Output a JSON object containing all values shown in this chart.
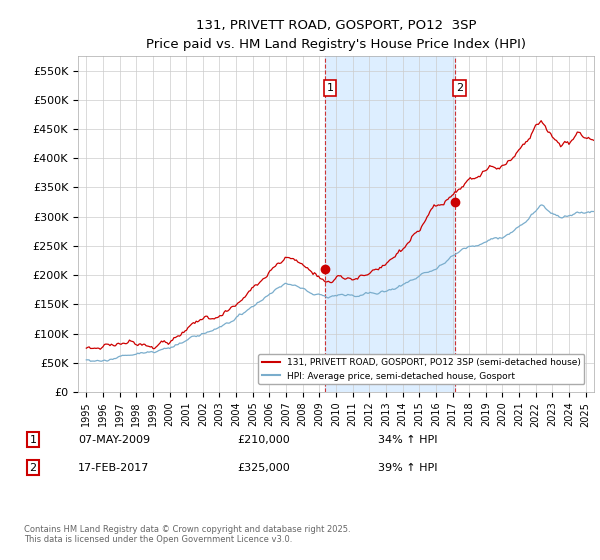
{
  "title": "131, PRIVETT ROAD, GOSPORT, PO12  3SP",
  "subtitle": "Price paid vs. HM Land Registry's House Price Index (HPI)",
  "legend_line1": "131, PRIVETT ROAD, GOSPORT, PO12 3SP (semi-detached house)",
  "legend_line2": "HPI: Average price, semi-detached house, Gosport",
  "footnote": "Contains HM Land Registry data © Crown copyright and database right 2025.\nThis data is licensed under the Open Government Licence v3.0.",
  "sale1_date": "07-MAY-2009",
  "sale1_price": "£210,000",
  "sale1_hpi": "34% ↑ HPI",
  "sale2_date": "17-FEB-2017",
  "sale2_price": "£325,000",
  "sale2_hpi": "39% ↑ HPI",
  "sale1_x": 2009.35,
  "sale1_y": 210000,
  "sale2_x": 2017.12,
  "sale2_y": 325000,
  "red_color": "#cc0000",
  "blue_color": "#7aadcc",
  "shading_color": "#ddeeff",
  "grid_color": "#cccccc",
  "ylim": [
    0,
    575000
  ],
  "xlim": [
    1994.5,
    2025.5
  ],
  "yticks": [
    0,
    50000,
    100000,
    150000,
    200000,
    250000,
    300000,
    350000,
    400000,
    450000,
    500000,
    550000
  ],
  "xticks": [
    1995,
    1996,
    1997,
    1998,
    1999,
    2000,
    2001,
    2002,
    2003,
    2004,
    2005,
    2006,
    2007,
    2008,
    2009,
    2010,
    2011,
    2012,
    2013,
    2014,
    2015,
    2016,
    2017,
    2018,
    2019,
    2020,
    2021,
    2022,
    2023,
    2024,
    2025
  ]
}
